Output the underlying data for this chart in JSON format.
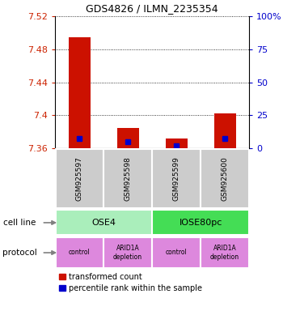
{
  "title": "GDS4826 / ILMN_2235354",
  "samples": [
    "GSM925597",
    "GSM925598",
    "GSM925599",
    "GSM925600"
  ],
  "red_bar_bottoms": [
    7.36,
    7.36,
    7.36,
    7.36
  ],
  "red_bar_tops": [
    7.494,
    7.385,
    7.372,
    7.402
  ],
  "blue_marker_values": [
    7.372,
    7.368,
    7.363,
    7.372
  ],
  "ylim": [
    7.36,
    7.52
  ],
  "yticks_left": [
    7.36,
    7.4,
    7.44,
    7.48,
    7.52
  ],
  "yticks_right_vals": [
    0,
    25,
    50,
    75,
    100
  ],
  "yticks_right_labels": [
    "0",
    "25",
    "50",
    "75",
    "100%"
  ],
  "left_color": "#cc2200",
  "right_color": "#0000cc",
  "blue_color": "#0000cc",
  "red_color": "#cc1100",
  "cell_line_labels": [
    "OSE4",
    "IOSE80pc"
  ],
  "cell_line_spans": [
    [
      0,
      2
    ],
    [
      2,
      4
    ]
  ],
  "cell_line_color_ose4": "#aaeebb",
  "cell_line_color_iose80pc": "#44dd55",
  "protocol_labels": [
    "control",
    "ARID1A\ndepletion",
    "control",
    "ARID1A\ndepletion"
  ],
  "protocol_color": "#dd88dd",
  "sample_box_color": "#cccccc",
  "legend_red_label": "transformed count",
  "legend_blue_label": "percentile rank within the sample",
  "cell_line_label": "cell line",
  "protocol_label": "protocol"
}
